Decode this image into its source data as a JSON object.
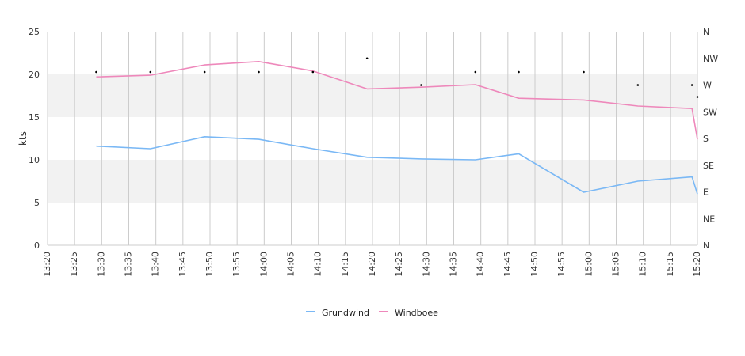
{
  "chart_data": {
    "type": "line",
    "ylabel": "kts",
    "ylim": [
      0,
      25
    ],
    "yticks": [
      "0",
      "5",
      "10",
      "15",
      "20",
      "25"
    ],
    "xlim": [
      "13:20",
      "15:20"
    ],
    "xticks": [
      "13:20",
      "13:25",
      "13:30",
      "13:35",
      "13:40",
      "13:45",
      "13:50",
      "13:55",
      "14:00",
      "14:05",
      "14:10",
      "14:15",
      "14:20",
      "14:25",
      "14:30",
      "14:35",
      "14:40",
      "14:45",
      "14:50",
      "14:55",
      "15:00",
      "15:05",
      "15:10",
      "15:15",
      "15:20"
    ],
    "direction_axis": {
      "labels": [
        "N",
        "NE",
        "E",
        "SE",
        "S",
        "SW",
        "W",
        "NW",
        "N"
      ],
      "range_degrees": [
        0,
        360
      ]
    },
    "bands": [
      [
        5,
        10
      ],
      [
        15,
        20
      ]
    ],
    "grid": true,
    "legend_position": "bottom-center",
    "colors": {
      "Grundwind": "#7ab8f5",
      "Windboee": "#ee88bb",
      "direction": "#000000",
      "band": "#f2f2f2",
      "grid": "#cccccc"
    },
    "series": [
      {
        "name": "Grundwind",
        "x": [
          "13:29",
          "13:39",
          "13:49",
          "13:59",
          "14:09",
          "14:19",
          "14:29",
          "14:39",
          "14:47",
          "14:59",
          "15:09",
          "15:19",
          "15:20"
        ],
        "values": [
          11.6,
          11.3,
          12.7,
          12.4,
          11.3,
          10.3,
          10.1,
          10.0,
          10.7,
          6.2,
          7.5,
          8.0,
          6.0
        ]
      },
      {
        "name": "Windboee",
        "x": [
          "13:29",
          "13:39",
          "13:49",
          "13:59",
          "14:09",
          "14:19",
          "14:29",
          "14:39",
          "14:47",
          "14:59",
          "15:09",
          "15:19",
          "15:20"
        ],
        "values": [
          19.7,
          19.9,
          21.1,
          21.5,
          20.4,
          18.3,
          18.5,
          18.8,
          17.2,
          17.0,
          16.3,
          16.0,
          12.4
        ]
      }
    ],
    "direction_points": {
      "x": [
        "13:29",
        "13:39",
        "13:49",
        "13:59",
        "14:09",
        "14:19",
        "14:29",
        "14:39",
        "14:47",
        "14:59",
        "15:09",
        "15:19",
        "15:20"
      ],
      "degrees": [
        292,
        292,
        292,
        292,
        292,
        315,
        270,
        292,
        292,
        292,
        270,
        270,
        250
      ]
    }
  }
}
